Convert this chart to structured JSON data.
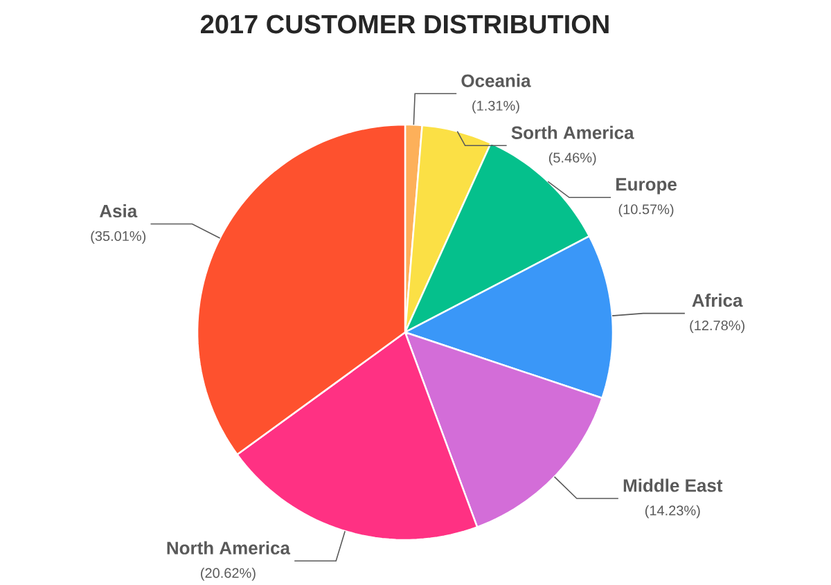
{
  "chart_data": {
    "type": "pie",
    "title": "2017 CUSTOMER DISTRIBUTION",
    "categories": [
      "Oceania",
      "Sorth America",
      "Europe",
      "Africa",
      "Middle East",
      "North America",
      "Asia"
    ],
    "values": [
      1.31,
      5.46,
      10.57,
      12.78,
      14.23,
      20.62,
      35.01
    ],
    "value_labels": [
      "(1.31%)",
      "(5.46%)",
      "(10.57%)",
      "(12.78%)",
      "(14.23%)",
      "(20.62%)",
      "(35.01%)"
    ],
    "colors": [
      "#fdb05a",
      "#fbe045",
      "#05c08c",
      "#3a97f8",
      "#d36dd8",
      "#ff3183",
      "#fe512e"
    ]
  }
}
